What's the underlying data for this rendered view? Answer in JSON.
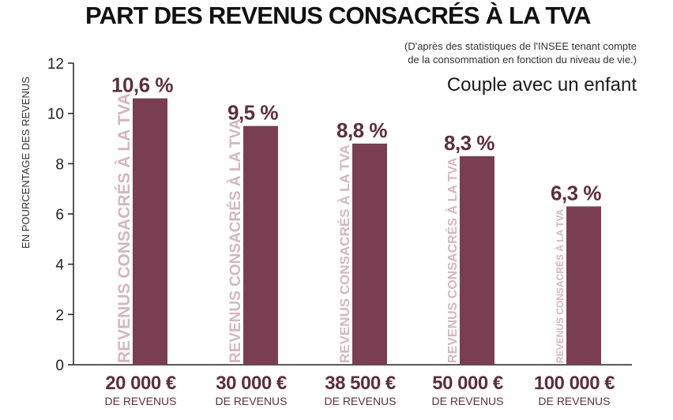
{
  "chart_data": {
    "type": "bar",
    "title": "PART DES REVENUS CONSACRÉS À LA TVA",
    "source_note": [
      "(D'après des statistiques de l'INSEE tenant compte",
      "de la consommation en fonction du niveau de vie.)"
    ],
    "subtitle": "Couple avec un enfant",
    "ylabel": "EN POURCENTAGE DES REVENUS",
    "xlabel": "",
    "ylim": [
      0,
      12
    ],
    "yticks": [
      0,
      2,
      4,
      6,
      8,
      10,
      12
    ],
    "grid": false,
    "categories": [
      "20 000 €",
      "30 000 €",
      "38 500 €",
      "50 000 €",
      "100 000 €"
    ],
    "category_sublabel": "DE REVENUS",
    "values": [
      10.6,
      9.5,
      8.8,
      8.3,
      6.3
    ],
    "value_labels": [
      "10,6 %",
      "9,5 %",
      "8,8 %",
      "8,3 %",
      "6,3 %"
    ],
    "bar_text": "REVENUS CONSACRÉS À LA TVA",
    "colors": {
      "bar": "#7a3e52",
      "bar_text": "#d4b6c0",
      "axis": "#222222"
    }
  }
}
